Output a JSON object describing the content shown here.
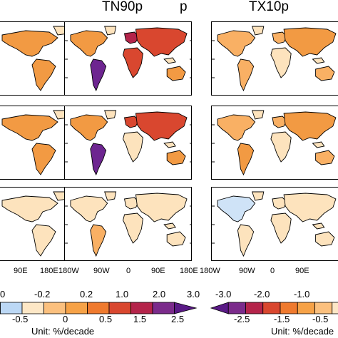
{
  "titles": {
    "left_partial": "p",
    "middle": "TN90p",
    "right": "TX10p"
  },
  "x_ticks": {
    "left": [
      "90E",
      "180E"
    ],
    "middle": [
      "180W",
      "90W",
      "0",
      "90E",
      "180E"
    ],
    "right": [
      "180W",
      "90W",
      "0",
      "90E"
    ]
  },
  "colorbar_left": {
    "top_labels": [
      "0",
      "-0.2",
      "0.2",
      "1.0",
      "2.0",
      "3.0"
    ],
    "bottom_labels": [
      "-0.5",
      "0",
      "0.5",
      "1.5",
      "2.5"
    ],
    "colors": [
      "#4f9ee8",
      "#bcd8f5",
      "#fde7c6",
      "#fbc07e",
      "#f6a247",
      "#ef7a2e",
      "#d9472f",
      "#b4244a",
      "#7b2b8b",
      "#5a1a86"
    ]
  },
  "colorbar_right": {
    "top_labels": [
      "-3.0",
      "-2.0",
      "-1.0"
    ],
    "bottom_labels": [
      "-2.5",
      "-1.5",
      "-0.5"
    ],
    "colors": [
      "#5a1a86",
      "#7b2b8b",
      "#b4244a",
      "#d9472f",
      "#ef7a2e",
      "#f6a247",
      "#fbc07e",
      "#fde7c6"
    ]
  },
  "unit_label": "Unit: %/decade",
  "map_colors": {
    "light": "#fde3bd",
    "mid": "#f9b064",
    "orange": "#f29a43",
    "red": "#d9472f",
    "deepred": "#b4244a",
    "purple": "#6d2590",
    "blue": "#cfe3f7"
  }
}
